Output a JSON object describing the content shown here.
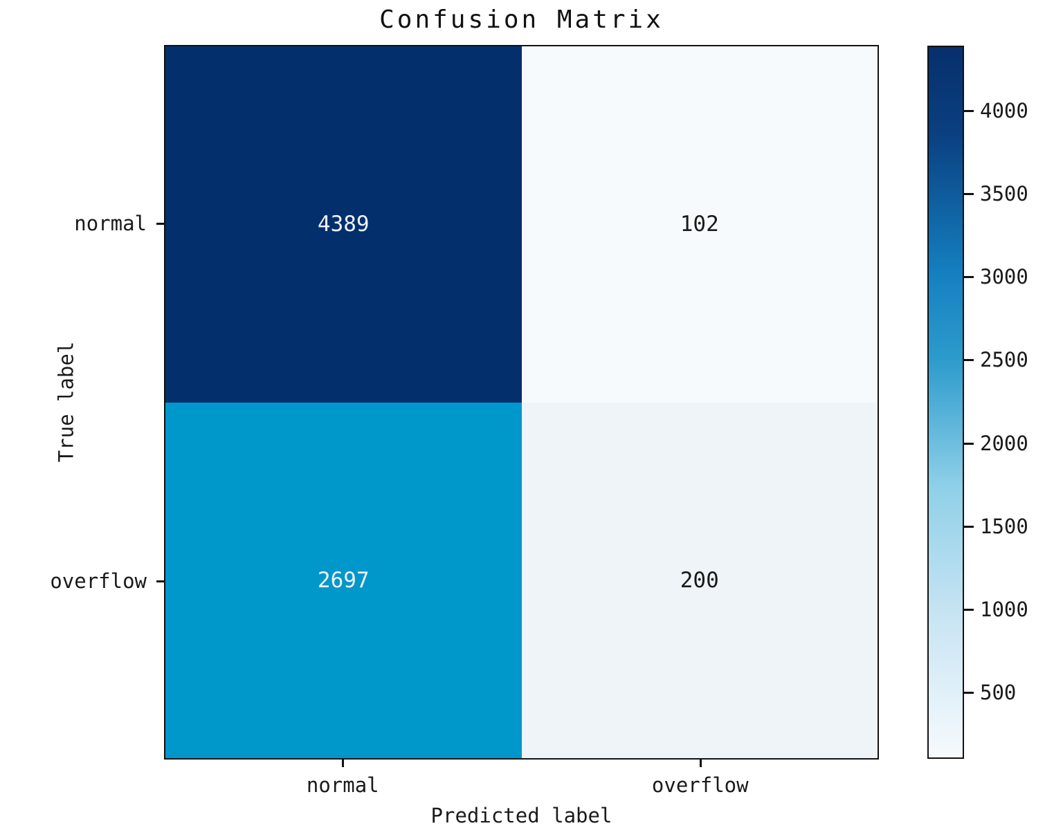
{
  "title": "Confusion Matrix",
  "chart_data": {
    "type": "heatmap",
    "title": "Confusion Matrix",
    "xlabel": "Predicted label",
    "ylabel": "True label",
    "x_categories": [
      "normal",
      "overflow"
    ],
    "y_categories": [
      "normal",
      "overflow"
    ],
    "matrix": [
      [
        4389,
        102
      ],
      [
        2697,
        200
      ]
    ],
    "cell_colors": [
      [
        "#042f6d",
        "#f6fafd"
      ],
      [
        "#0097cb",
        "#eef4f8"
      ]
    ],
    "cell_text_colors": [
      [
        "#eff3f7",
        "#1a1a1a"
      ],
      [
        "#eff3f7",
        "#1a1a1a"
      ]
    ],
    "colormap": "Blues",
    "grid": false,
    "colorbar": {
      "vmin": 102,
      "vmax": 4389,
      "ticks": [
        4000,
        3500,
        3000,
        2500,
        2000,
        1500,
        1000,
        500
      ],
      "gradient": [
        {
          "color": "#072f6c",
          "pos": 0
        },
        {
          "color": "#0a3f80",
          "pos": 12
        },
        {
          "color": "#1580c0",
          "pos": 32
        },
        {
          "color": "#2d9bcc",
          "pos": 44
        },
        {
          "color": "#8fd0e8",
          "pos": 62
        },
        {
          "color": "#c8e4f3",
          "pos": 80
        },
        {
          "color": "#f6fafd",
          "pos": 100
        }
      ]
    }
  }
}
